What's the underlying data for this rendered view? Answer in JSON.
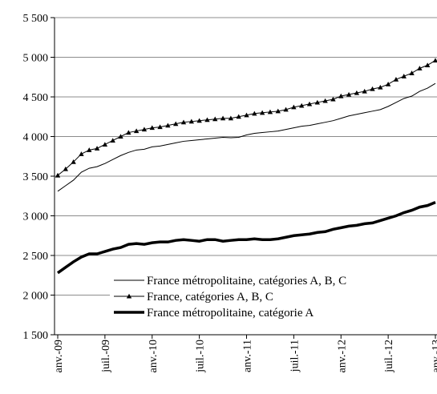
{
  "chart_data": {
    "type": "line",
    "categories": [
      "anv.-09",
      null,
      null,
      null,
      null,
      null,
      "juil.-09",
      null,
      null,
      null,
      null,
      null,
      "anv.-10",
      null,
      null,
      null,
      null,
      null,
      "juil.-10",
      null,
      null,
      null,
      null,
      null,
      "anv.-11",
      null,
      null,
      null,
      null,
      null,
      "juil.-11",
      null,
      null,
      null,
      null,
      null,
      "anv.-12",
      null,
      null,
      null,
      null,
      null,
      "juil.-12",
      null,
      null,
      null,
      null,
      null,
      "anv.-13"
    ],
    "series": [
      {
        "name": "France métropolitaine, catégories A, B, C",
        "color": "#000000",
        "width": 1,
        "marker": null,
        "values": [
          3310,
          3380,
          3450,
          3550,
          3600,
          3620,
          3660,
          3710,
          3760,
          3800,
          3830,
          3840,
          3870,
          3880,
          3900,
          3920,
          3940,
          3950,
          3960,
          3970,
          3980,
          3990,
          3985,
          3990,
          4020,
          4040,
          4050,
          4060,
          4070,
          4090,
          4110,
          4130,
          4140,
          4160,
          4180,
          4200,
          4230,
          4260,
          4280,
          4300,
          4320,
          4340,
          4380,
          4430,
          4480,
          4510,
          4570,
          4610,
          4670
        ]
      },
      {
        "name": "France, catégories A, B, C",
        "color": "#000000",
        "width": 1,
        "marker": "triangle",
        "values": [
          3510,
          3590,
          3680,
          3780,
          3830,
          3850,
          3900,
          3950,
          4000,
          4050,
          4070,
          4090,
          4110,
          4120,
          4140,
          4160,
          4180,
          4190,
          4200,
          4210,
          4220,
          4230,
          4230,
          4250,
          4270,
          4290,
          4300,
          4310,
          4320,
          4340,
          4370,
          4390,
          4410,
          4430,
          4450,
          4470,
          4510,
          4530,
          4550,
          4570,
          4600,
          4620,
          4660,
          4720,
          4760,
          4800,
          4860,
          4900,
          4960
        ]
      },
      {
        "name": "France métropolitaine, catégorie A",
        "color": "#000000",
        "width": 3.5,
        "marker": null,
        "values": [
          2280,
          2350,
          2420,
          2480,
          2520,
          2520,
          2550,
          2580,
          2600,
          2640,
          2650,
          2640,
          2660,
          2670,
          2670,
          2690,
          2700,
          2690,
          2680,
          2700,
          2700,
          2680,
          2690,
          2700,
          2700,
          2710,
          2700,
          2700,
          2710,
          2730,
          2750,
          2760,
          2770,
          2790,
          2800,
          2830,
          2850,
          2870,
          2880,
          2900,
          2910,
          2940,
          2970,
          3000,
          3040,
          3070,
          3110,
          3130,
          3170
        ]
      }
    ],
    "ylim": [
      1500,
      5500
    ],
    "yticks": [
      {
        "value": 1500,
        "label": "1 500"
      },
      {
        "value": 2000,
        "label": "2 000"
      },
      {
        "value": 2500,
        "label": "2 500"
      },
      {
        "value": 3000,
        "label": "3 000"
      },
      {
        "value": 3500,
        "label": "3 500"
      },
      {
        "value": 4000,
        "label": "4 000"
      },
      {
        "value": 4500,
        "label": "4 500"
      },
      {
        "value": 5000,
        "label": "5 000"
      },
      {
        "value": 5500,
        "label": "5 500"
      }
    ],
    "grid": true,
    "legend": "lower right"
  }
}
